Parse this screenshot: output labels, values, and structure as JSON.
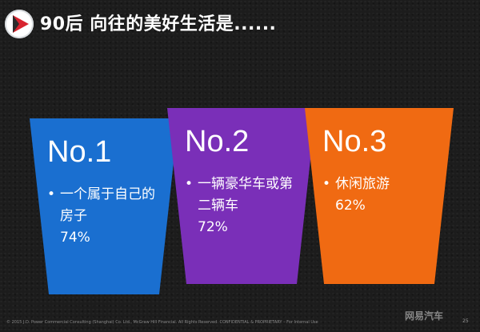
{
  "title": "90后 向往的美好生活是......",
  "cards": [
    {
      "rank": "No.1",
      "bullet": "•",
      "text": "一个属于自己的房子",
      "percent": "74%",
      "color": "#1a6fd0"
    },
    {
      "rank": "No.2",
      "bullet": "•",
      "text": "一辆豪华车或第二辆车",
      "percent": "72%",
      "color": "#7a2fb8"
    },
    {
      "rank": "No.3",
      "bullet": "•",
      "text": "休闲旅游",
      "percent": "62%",
      "color": "#f06a12"
    }
  ],
  "footer": "© 2015 J.D. Power Commercial Consulting (Shanghai) Co. Ltd., McGraw Hill Financial. All Rights Reserved. CONFIDENTIAL & PROPRIETARY – For Internal Use",
  "page_number": "25",
  "watermark": "网易汽车"
}
